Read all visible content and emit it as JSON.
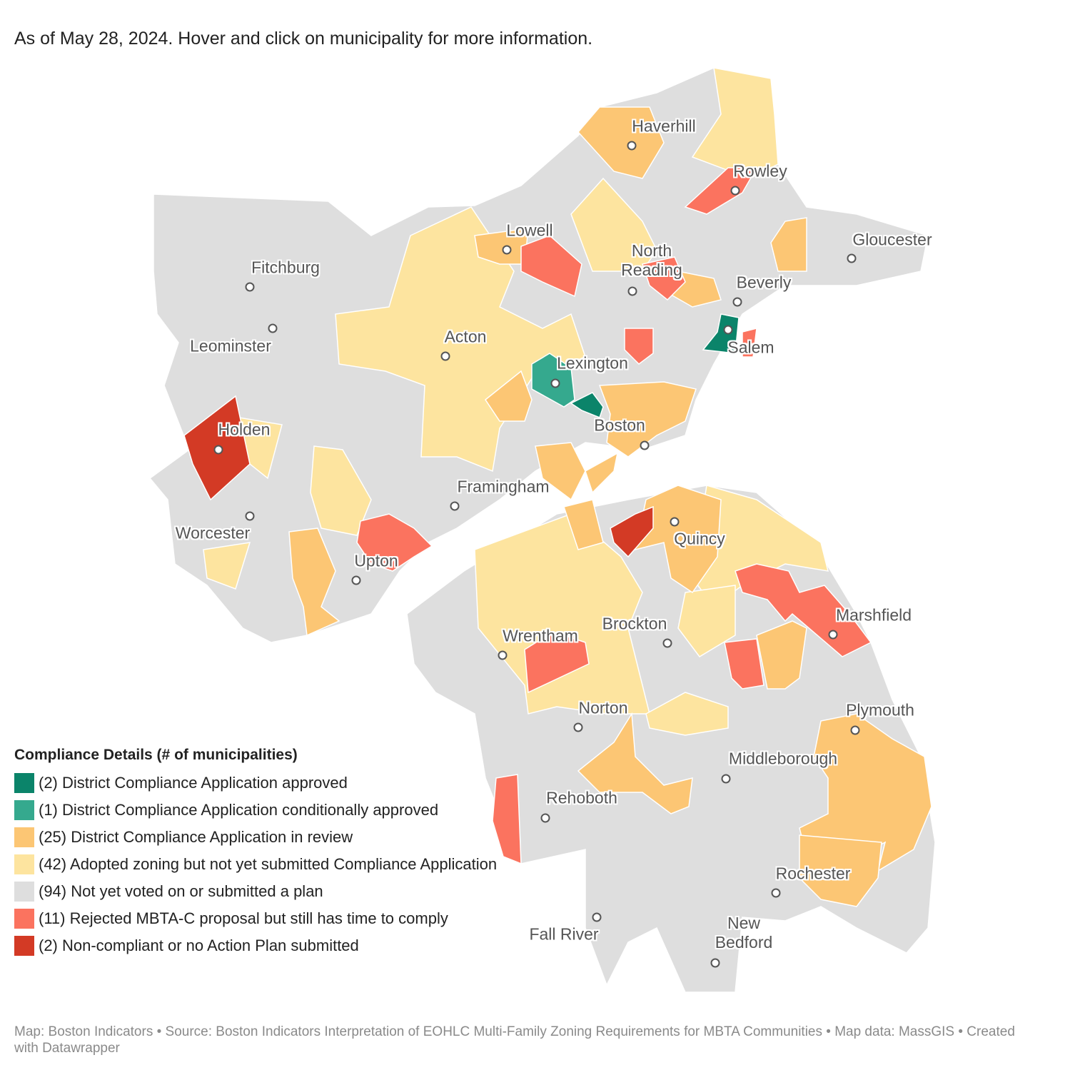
{
  "subtitle": "As of May 28, 2024. Hover and click on municipality for more information.",
  "legend": {
    "title": "Compliance Details (# of municipalities)",
    "items": [
      {
        "label": "(2) District Compliance Application approved",
        "color": "#0b846a"
      },
      {
        "label": "(1) District Compliance Application conditionally approved",
        "color": "#35a98e"
      },
      {
        "label": "(25) District Compliance Application in review",
        "color": "#fcc674"
      },
      {
        "label": "(42) Adopted zoning but not yet submitted Compliance Application",
        "color": "#fde49f"
      },
      {
        "label": "(94) Not yet voted on or submitted a plan",
        "color": "#dedede"
      },
      {
        "label": "(11) Rejected MBTA-C proposal but still has time to comply",
        "color": "#fb735f"
      },
      {
        "label": "(2) Non-compliant or no Action Plan submitted",
        "color": "#d33a25"
      }
    ]
  },
  "places": [
    "Haverhill",
    "Rowley",
    "Lowell",
    "Gloucester",
    "Fitchburg",
    "North Reading",
    "Beverly",
    "Leominster",
    "Acton",
    "Salem",
    "Lexington",
    "Holden",
    "Boston",
    "Framingham",
    "Worcester",
    "Quincy",
    "Upton",
    "Marshfield",
    "Brockton",
    "Wrentham",
    "Norton",
    "Plymouth",
    "Middleborough",
    "Rehoboth",
    "Rochester",
    "Fall River",
    "New Bedford"
  ],
  "footer": "Map: Boston Indicators • Source: Boston Indicators Interpretation of EOHLC Multi-Family Zoning Requirements for MBTA Communities • Map data: MassGIS • Created with Datawrapper"
}
